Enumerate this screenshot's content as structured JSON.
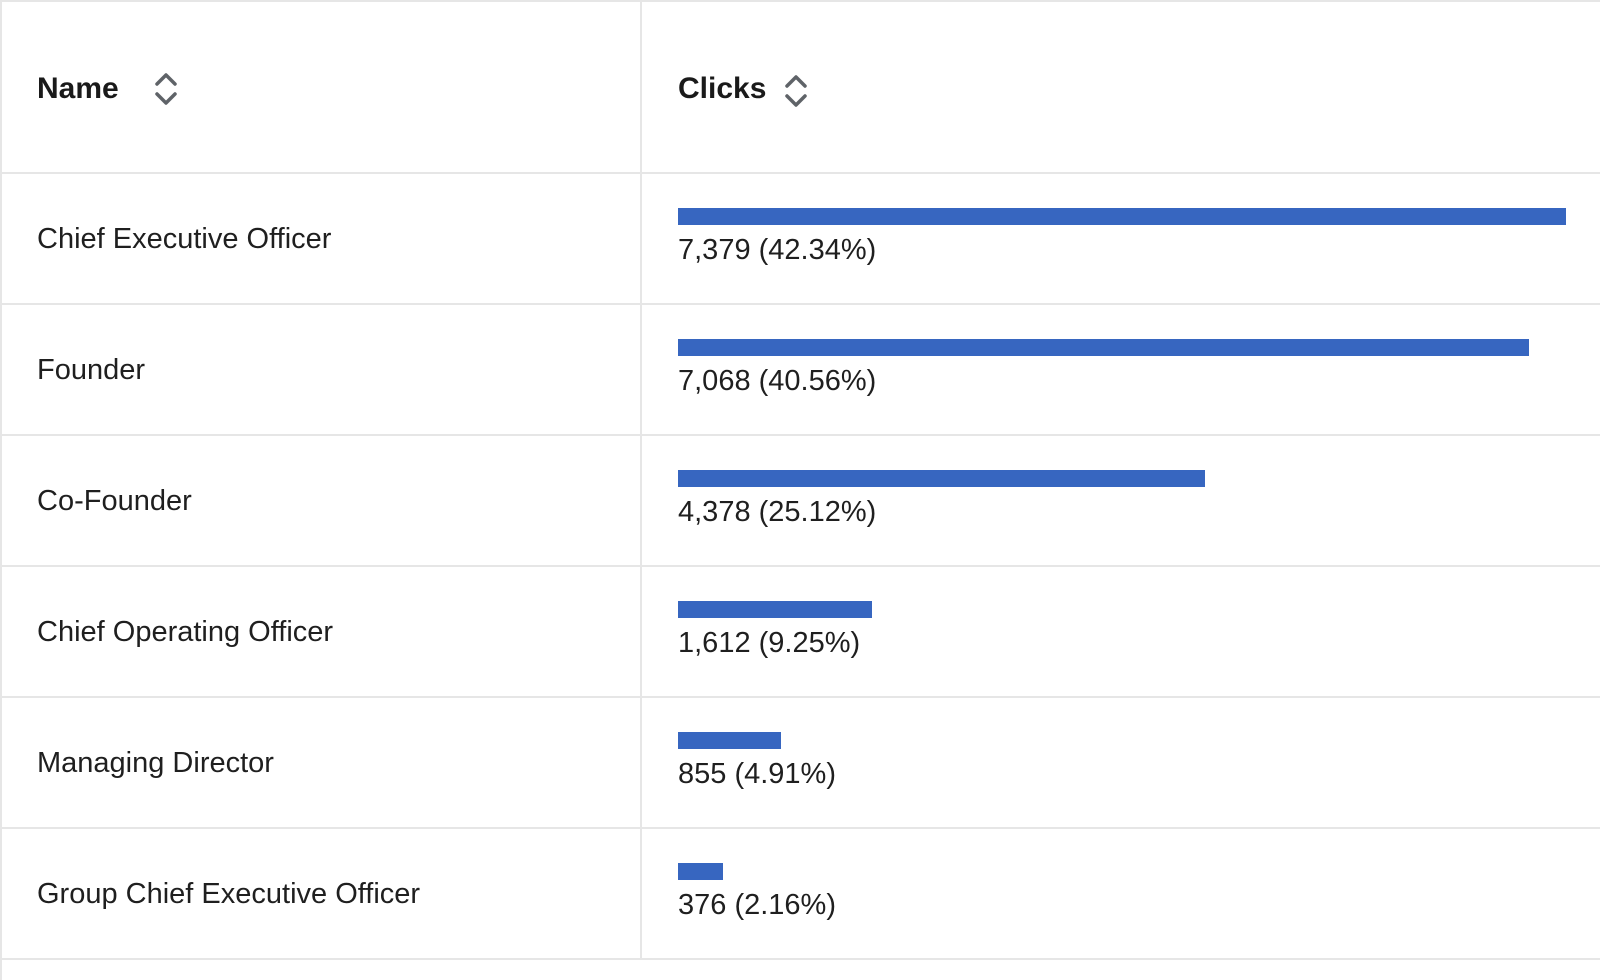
{
  "table": {
    "headers": {
      "name": "Name",
      "clicks": "Clicks",
      "sort_icon": "sort-updown-icon"
    },
    "bar_color": "#3766c0",
    "max_clicks": 7379,
    "rows": [
      {
        "name": "Chief Executive Officer",
        "clicks": 7379,
        "label": "7,379 (42.34%)"
      },
      {
        "name": "Founder",
        "clicks": 7068,
        "label": "7,068 (40.56%)"
      },
      {
        "name": "Co-Founder",
        "clicks": 4378,
        "label": "4,378 (25.12%)"
      },
      {
        "name": "Chief Operating Officer",
        "clicks": 1612,
        "label": "1,612 (9.25%)"
      },
      {
        "name": "Managing Director",
        "clicks": 855,
        "label": "855 (4.91%)"
      },
      {
        "name": "Group Chief Executive Officer",
        "clicks": 376,
        "label": "376 (2.16%)"
      }
    ]
  }
}
